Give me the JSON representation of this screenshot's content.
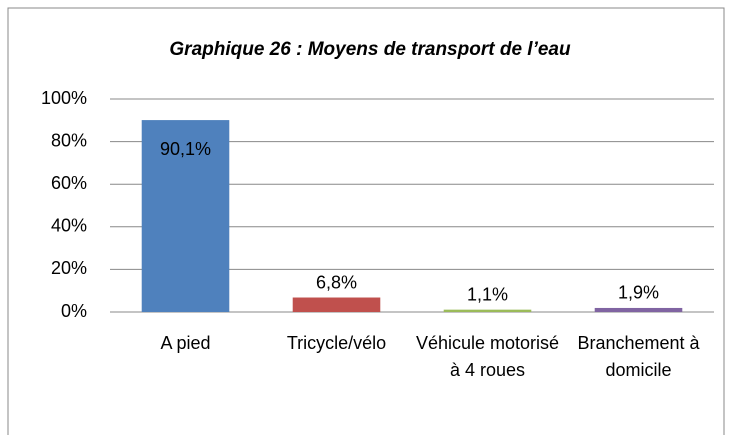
{
  "chart_data": {
    "type": "bar",
    "title": "Graphique 26 : Moyens de transport de l’eau",
    "categories": [
      "A pied",
      "Tricycle/vélo",
      "Véhicule motorisé à 4 roues",
      "Branchement à domicile"
    ],
    "values": [
      90.1,
      6.8,
      1.1,
      1.9
    ],
    "value_labels": [
      "90,1%",
      "6,8%",
      "1,1%",
      "1,9%"
    ],
    "colors": [
      "#4f81bd",
      "#c0504d",
      "#9bbb59",
      "#8064a2"
    ],
    "ylim": [
      0,
      100
    ],
    "yticks": [
      {
        "value": 0,
        "label": "0%"
      },
      {
        "value": 20,
        "label": "20%"
      },
      {
        "value": 40,
        "label": "40%"
      },
      {
        "value": 60,
        "label": "60%"
      },
      {
        "value": 80,
        "label": "80%"
      },
      {
        "value": 100,
        "label": "100%"
      }
    ],
    "grid": true
  }
}
